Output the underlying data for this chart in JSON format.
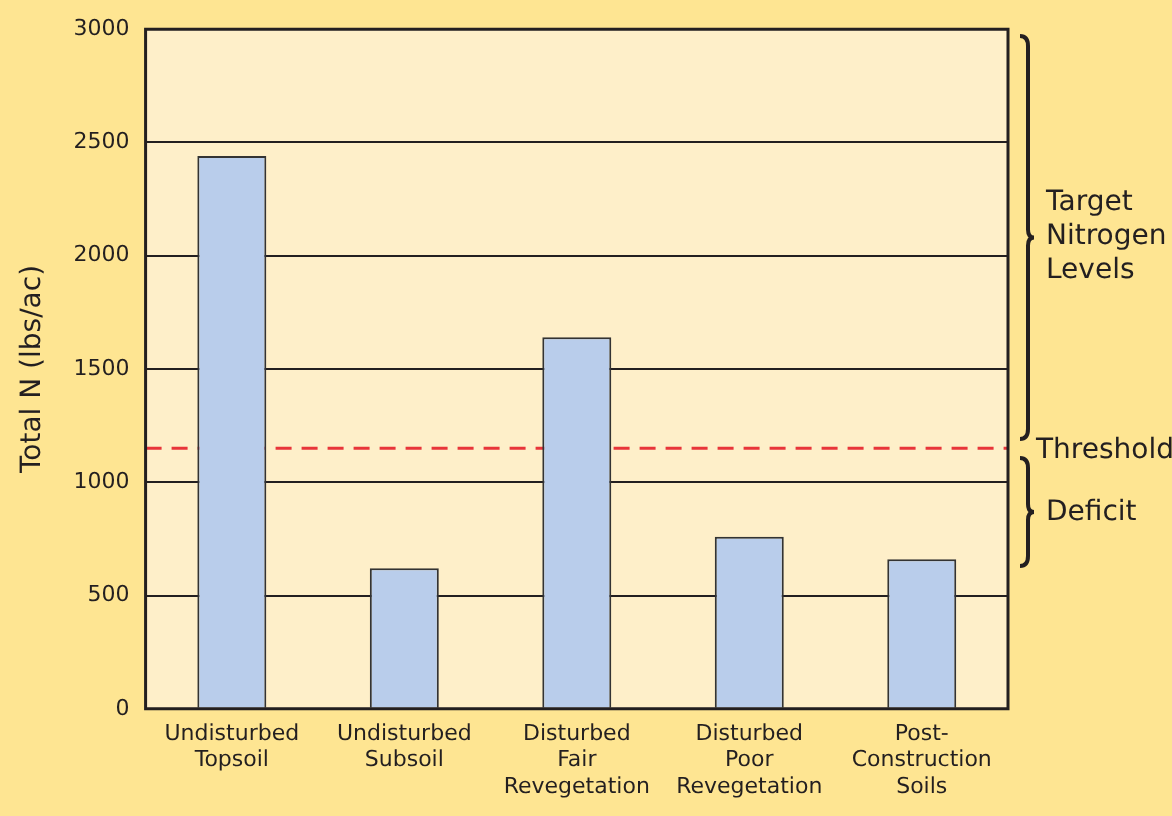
{
  "chart_data": {
    "type": "bar",
    "ylabel": "Total N (lbs/ac)",
    "categories": [
      "Undisturbed Topsoil",
      "Undisturbed Subsoil",
      "Disturbed Fair Revegetation",
      "Disturbed Poor Revegetation",
      "Post-Construction Soils"
    ],
    "values": [
      2440,
      620,
      1640,
      760,
      660
    ],
    "color": "#b9cdeb",
    "ylim": [
      0,
      3000
    ],
    "yticks": [
      0,
      500,
      1000,
      1500,
      2000,
      2500,
      3000
    ],
    "grid": "y",
    "ref_lines": [
      {
        "axis": "y",
        "value": 1150,
        "label": "Threshold",
        "color": "#e8353a",
        "line_style": "dashed"
      }
    ],
    "annotations": [
      "Target Nitrogen Levels",
      "Deficit"
    ]
  }
}
